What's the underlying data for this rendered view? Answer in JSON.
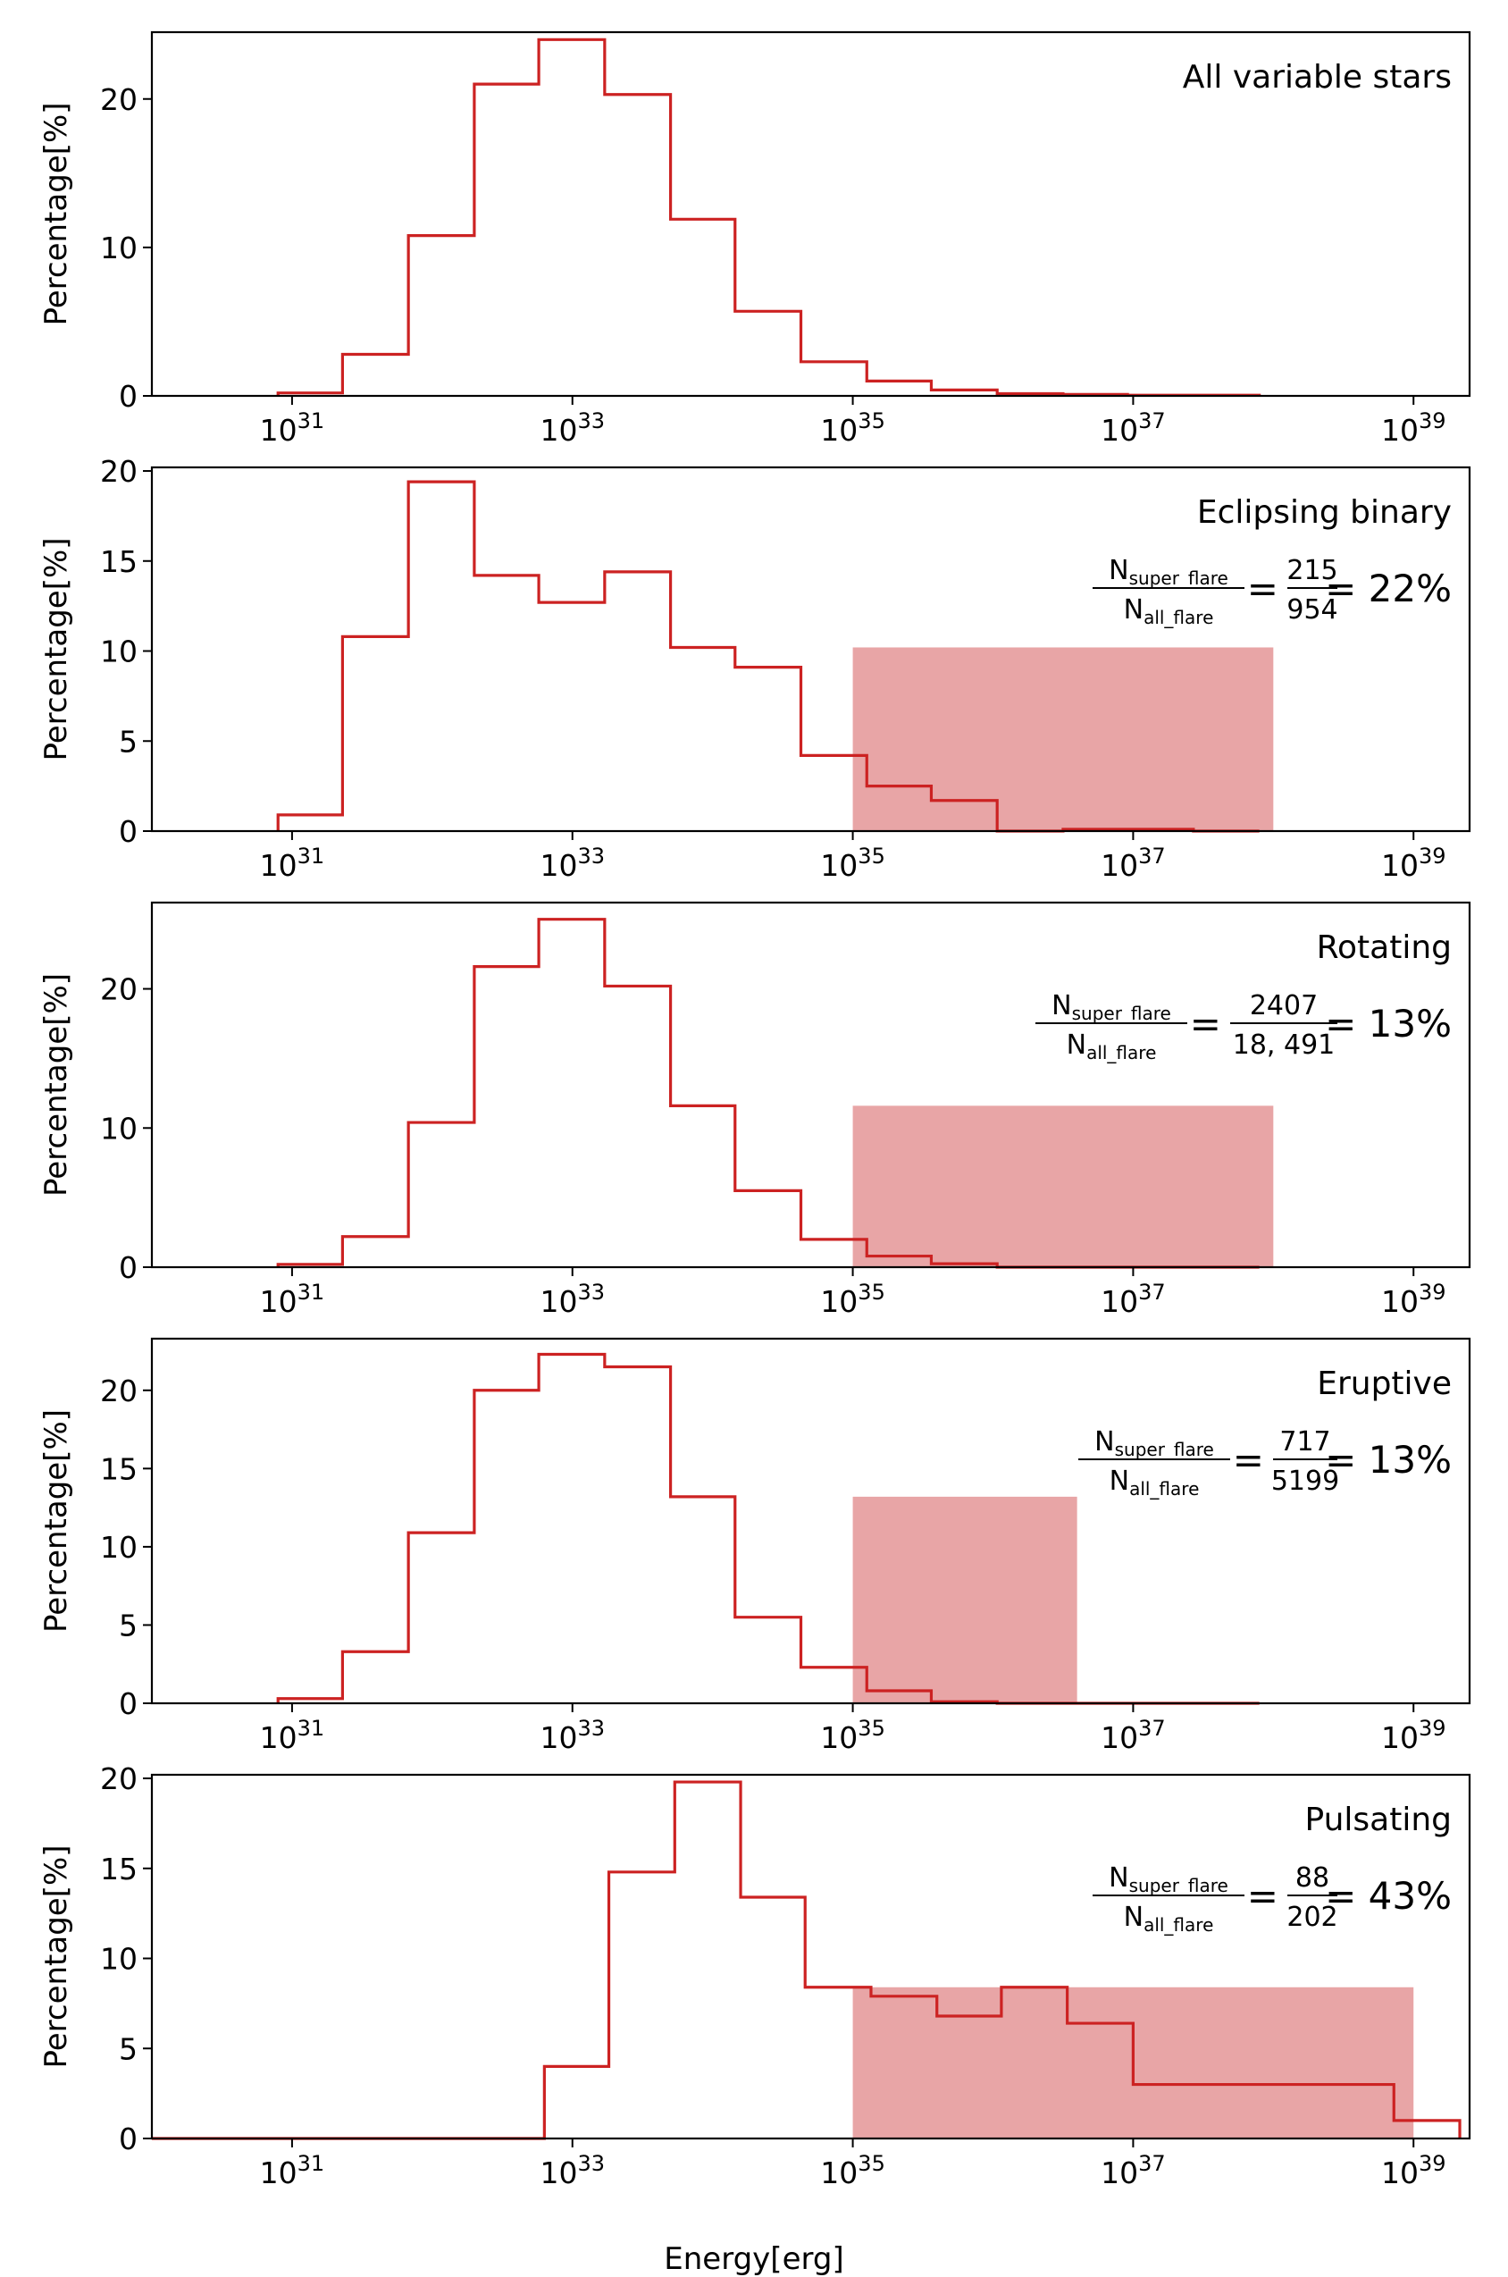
{
  "figure": {
    "xlabel": "Energy[erg]",
    "ylabel": "Percentage[%]"
  },
  "chart_data": [
    {
      "type": "histogram-step",
      "title": "All variable stars",
      "xscale": "log",
      "xlim_exp": [
        30.0,
        39.4
      ],
      "ylim": [
        0,
        24.5
      ],
      "yticks": [
        0,
        10,
        20
      ],
      "xtick_exps": [
        31,
        33,
        35,
        37,
        39
      ],
      "bin_edges_exp": [
        30.9,
        31.36,
        31.83,
        32.3,
        32.76,
        33.23,
        33.7,
        34.16,
        34.63,
        35.1,
        35.56,
        36.03,
        36.5,
        36.96,
        37.43,
        37.9
      ],
      "values": [
        0.2,
        2.8,
        10.8,
        21.0,
        24.0,
        20.3,
        11.9,
        5.7,
        2.3,
        1.0,
        0.4,
        0.15,
        0.1,
        0.05,
        0.05
      ],
      "shade": null,
      "ratio": null
    },
    {
      "type": "histogram-step",
      "title": "Eclipsing binary",
      "xscale": "log",
      "xlim_exp": [
        30.0,
        39.4
      ],
      "ylim": [
        0,
        20.2
      ],
      "yticks": [
        0,
        5,
        10,
        15,
        20
      ],
      "xtick_exps": [
        31,
        33,
        35,
        37,
        39
      ],
      "bin_edges_exp": [
        30.9,
        31.36,
        31.83,
        32.3,
        32.76,
        33.23,
        33.7,
        34.16,
        34.63,
        35.1,
        35.56,
        36.03,
        36.5,
        36.96,
        37.43,
        37.9
      ],
      "values": [
        0.9,
        10.8,
        19.4,
        14.2,
        12.7,
        14.4,
        10.2,
        9.1,
        4.2,
        2.5,
        1.7,
        0.0,
        0.1,
        0.1,
        0.0
      ],
      "shade": {
        "x_exp": [
          35.0,
          38.0
        ],
        "y": 10.2
      },
      "ratio": {
        "num_label": "N",
        "num_sub": "super_flare",
        "den_label": "N",
        "den_sub": "all_flare",
        "numerator": "215",
        "denominator": "954",
        "percent": "= 22%"
      }
    },
    {
      "type": "histogram-step",
      "title": "Rotating",
      "xscale": "log",
      "xlim_exp": [
        30.0,
        39.4
      ],
      "ylim": [
        0,
        26.2
      ],
      "yticks": [
        0,
        10,
        20
      ],
      "xtick_exps": [
        31,
        33,
        35,
        37,
        39
      ],
      "bin_edges_exp": [
        30.9,
        31.36,
        31.83,
        32.3,
        32.76,
        33.23,
        33.7,
        34.16,
        34.63,
        35.1,
        35.56,
        36.03,
        36.5,
        36.96,
        37.43,
        37.9
      ],
      "values": [
        0.2,
        2.2,
        10.4,
        21.6,
        25.0,
        20.2,
        11.6,
        5.5,
        2.0,
        0.8,
        0.25,
        0.0,
        0.0,
        0.0,
        0.0
      ],
      "shade": {
        "x_exp": [
          35.0,
          38.0
        ],
        "y": 11.6
      },
      "ratio": {
        "num_label": "N",
        "num_sub": "super_flare",
        "den_label": "N",
        "den_sub": "all_flare",
        "numerator": "2407",
        "denominator": "18, 491",
        "percent": "= 13%"
      }
    },
    {
      "type": "histogram-step",
      "title": "Eruptive",
      "xscale": "log",
      "xlim_exp": [
        30.0,
        39.4
      ],
      "ylim": [
        0,
        23.3
      ],
      "yticks": [
        0,
        5,
        10,
        15,
        20
      ],
      "xtick_exps": [
        31,
        33,
        35,
        37,
        39
      ],
      "bin_edges_exp": [
        30.9,
        31.36,
        31.83,
        32.3,
        32.76,
        33.23,
        33.7,
        34.16,
        34.63,
        35.1,
        35.56,
        36.03,
        36.5,
        36.96,
        37.43,
        37.9
      ],
      "values": [
        0.3,
        3.3,
        10.9,
        20.0,
        22.3,
        21.5,
        13.2,
        5.5,
        2.3,
        0.8,
        0.1,
        0.0,
        0.0,
        0.0,
        0.0
      ],
      "shade": {
        "x_exp": [
          35.0,
          36.6
        ],
        "y": 13.2
      },
      "ratio": {
        "num_label": "N",
        "num_sub": "super_flare",
        "den_label": "N",
        "den_sub": "all_flare",
        "numerator": "717",
        "denominator": "5199",
        "percent": "= 13%"
      }
    },
    {
      "type": "histogram-step",
      "title": "Pulsating",
      "xscale": "log",
      "xlim_exp": [
        30.0,
        39.4
      ],
      "ylim": [
        0,
        20.2
      ],
      "yticks": [
        0,
        5,
        10,
        15,
        20
      ],
      "xtick_exps": [
        31,
        33,
        35,
        37,
        39
      ],
      "bin_edges_exp": [
        30.0,
        30.46,
        30.93,
        31.4,
        31.86,
        32.33,
        32.8,
        33.26,
        33.73,
        34.2,
        34.66,
        35.13,
        35.6,
        36.06,
        36.53,
        37.0,
        37.46,
        37.93,
        38.4,
        38.86,
        39.33
      ],
      "values": [
        0.0,
        0.0,
        0.0,
        0.0,
        0.0,
        0.0,
        4.0,
        14.8,
        19.8,
        13.4,
        8.4,
        7.9,
        6.8,
        8.4,
        6.4,
        3.0,
        3.0,
        3.0,
        3.0,
        1.0
      ],
      "shade": {
        "x_exp": [
          35.0,
          39.0
        ],
        "y": 8.4
      },
      "ratio": {
        "num_label": "N",
        "num_sub": "super_flare",
        "den_label": "N",
        "den_sub": "all_flare",
        "numerator": "88",
        "denominator": "202",
        "percent": "= 43%"
      }
    }
  ]
}
